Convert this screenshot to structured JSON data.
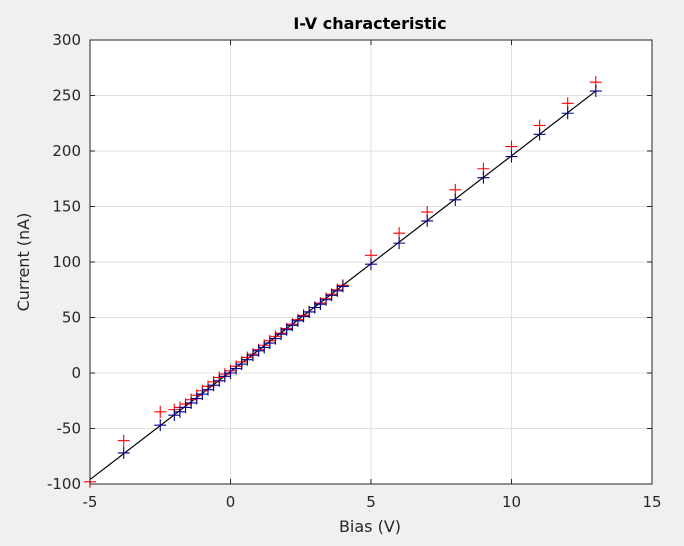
{
  "chart_data": {
    "type": "scatter",
    "title": "I-V characteristic",
    "xlabel": "Bias (V)",
    "ylabel": "Current (nA)",
    "xlim": [
      -5,
      15
    ],
    "ylim": [
      -100,
      300
    ],
    "xticks": [
      -5,
      0,
      5,
      10,
      15
    ],
    "yticks": [
      -100,
      -50,
      0,
      50,
      100,
      150,
      200,
      250,
      300
    ],
    "grid": true,
    "legend": "none",
    "colors": {
      "background": "#f0f0f0",
      "plot_area": "#ffffff",
      "grid": "#e0e0e0",
      "axis": "#262626",
      "fit_line": "#000000",
      "series_red": "#ff0000",
      "series_blue": "#00008b"
    },
    "series": [
      {
        "marker": "plus",
        "color": "#ff0000",
        "x": [
          -5.0,
          -3.8,
          -2.5,
          -2.0,
          -1.8,
          -1.6,
          -1.4,
          -1.2,
          -1.0,
          -0.8,
          -0.6,
          -0.4,
          -0.2,
          0.0,
          0.2,
          0.4,
          0.6,
          0.8,
          1.0,
          1.2,
          1.4,
          1.6,
          1.8,
          2.0,
          2.2,
          2.4,
          2.6,
          2.8,
          3.0,
          3.2,
          3.4,
          3.6,
          3.8,
          4.0,
          5.0,
          6.0,
          7.0,
          8.0,
          9.0,
          10.0,
          11.0,
          12.0,
          13.0
        ],
        "y": [
          -98,
          -61,
          -35,
          -33,
          -31,
          -28,
          -24,
          -20,
          -16,
          -12,
          -8,
          -4,
          -1,
          2,
          6,
          10,
          14,
          17,
          21,
          25,
          29,
          33,
          36,
          40,
          44,
          48,
          52,
          55,
          59,
          63,
          67,
          71,
          75,
          79,
          106,
          126,
          145,
          165,
          184,
          204,
          223,
          243,
          262
        ]
      },
      {
        "marker": "plus",
        "color": "#00008b",
        "x": [
          -3.8,
          -2.5,
          -2.0,
          -1.8,
          -1.6,
          -1.4,
          -1.2,
          -1.0,
          -0.8,
          -0.6,
          -0.4,
          -0.2,
          0.0,
          0.2,
          0.4,
          0.6,
          0.8,
          1.0,
          1.2,
          1.4,
          1.6,
          1.8,
          2.0,
          2.2,
          2.4,
          2.6,
          2.8,
          3.0,
          3.2,
          3.4,
          3.6,
          3.8,
          4.0,
          5.0,
          6.0,
          7.0,
          8.0,
          9.0,
          10.0,
          11.0,
          12.0,
          13.0
        ],
        "y": [
          -72,
          -47,
          -38,
          -35,
          -31,
          -27,
          -23,
          -19,
          -15,
          -11,
          -7,
          -3,
          0,
          4,
          8,
          12,
          16,
          20,
          23,
          27,
          31,
          35,
          39,
          43,
          47,
          51,
          55,
          59,
          62,
          66,
          70,
          74,
          78,
          98,
          117,
          137,
          156,
          176,
          195,
          215,
          234,
          254
        ]
      }
    ],
    "fit_line": {
      "color": "#000000",
      "x": [
        -5,
        13
      ],
      "y": [
        -96,
        254
      ]
    }
  }
}
